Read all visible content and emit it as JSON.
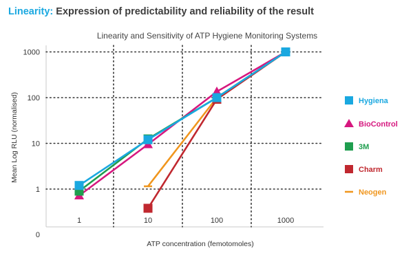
{
  "header": {
    "highlight": "Linearity:",
    "rest": " Expression of predictability and reliability of the result",
    "highlight_color": "#1aa8e0"
  },
  "chart_data": {
    "type": "line",
    "title": "Linearity and Sensitivity of ATP Hygiene Monitoring Systems",
    "xlabel": "ATP concentration (femotomoles)",
    "ylabel": "Mean Log RLU (normalised)",
    "x_scale": "log",
    "y_scale": "log",
    "x_ticks": [
      "1",
      "10",
      "100",
      "1000"
    ],
    "y_ticks": [
      "1000",
      "100",
      "10",
      "1"
    ],
    "origin_label": "0",
    "xlim": [
      1,
      1000
    ],
    "ylim": [
      0.35,
      1000
    ],
    "grid": true,
    "legend_position": "right",
    "series": [
      {
        "name": "Hygiena",
        "color": "#1aa8e0",
        "marker": "square",
        "points": [
          [
            1,
            1.2
          ],
          [
            10,
            12
          ],
          [
            100,
            100
          ],
          [
            1000,
            1000
          ]
        ]
      },
      {
        "name": "BioControl",
        "color": "#d6187f",
        "marker": "triangle",
        "points": [
          [
            1,
            0.72
          ],
          [
            10,
            9.5
          ],
          [
            100,
            135
          ],
          [
            1000,
            1000
          ]
        ]
      },
      {
        "name": "3M",
        "color": "#1f9e4f",
        "marker": "square",
        "points": [
          [
            1,
            0.9
          ],
          [
            10,
            12.5
          ],
          [
            100,
            100
          ],
          [
            1000,
            1000
          ]
        ]
      },
      {
        "name": "Charm",
        "color": "#c0282f",
        "marker": "square",
        "points": [
          [
            10,
            0.38
          ],
          [
            100,
            92
          ],
          [
            1000,
            1000
          ]
        ]
      },
      {
        "name": "Neogen",
        "color": "#f0961e",
        "marker": "dash",
        "points": [
          [
            10,
            1.15
          ],
          [
            100,
            100
          ],
          [
            1000,
            1000
          ]
        ]
      }
    ]
  }
}
